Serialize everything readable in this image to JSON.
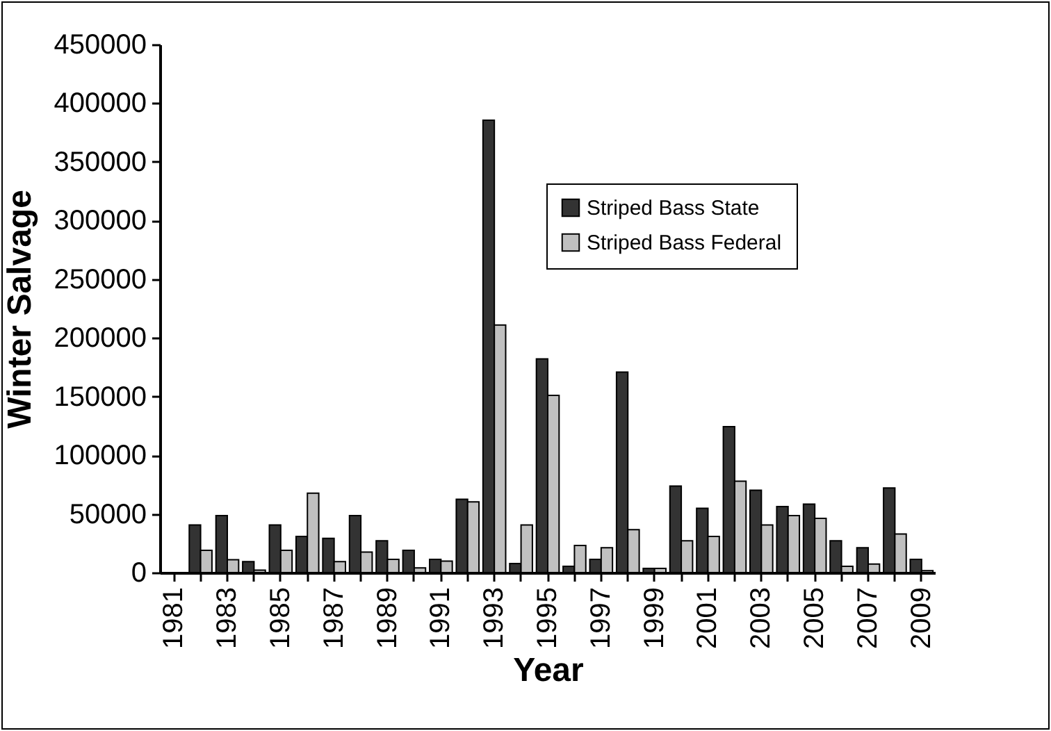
{
  "chart_data": {
    "type": "bar",
    "xlabel": "Year",
    "ylabel": "Winter Salvage",
    "categories": [
      "1981",
      null,
      "1983",
      null,
      "1985",
      null,
      "1987",
      null,
      "1989",
      null,
      "1991",
      null,
      "1993",
      null,
      "1995",
      null,
      "1997",
      null,
      "1999",
      null,
      "2001",
      null,
      "2003",
      null,
      "2005",
      null,
      "2007",
      null,
      "2009"
    ],
    "series": [
      {
        "name": "Striped Bass State",
        "color": "#333333",
        "values": [
          null,
          40500,
          48600,
          9300,
          40500,
          30800,
          29200,
          48600,
          27100,
          19000,
          11300,
          62400,
          385500,
          7700,
          182000,
          5300,
          11300,
          170800,
          3600,
          73700,
          54700,
          124300,
          70100,
          56300,
          58300,
          27100,
          21100,
          72100,
          11300
        ]
      },
      {
        "name": "Striped Bass Federal",
        "color": "#c0c0c0",
        "values": [
          null,
          19000,
          10900,
          2000,
          19000,
          67600,
          9300,
          17400,
          11300,
          4000,
          9700,
          60300,
          211000,
          40500,
          151000,
          23100,
          21100,
          36500,
          3600,
          27100,
          30800,
          77800,
          40500,
          48600,
          46200,
          5300,
          7300,
          32800,
          1600
        ]
      }
    ],
    "ylim": [
      0,
      450000
    ],
    "yticks": [
      0,
      50000,
      100000,
      150000,
      200000,
      250000,
      300000,
      350000,
      400000,
      450000
    ],
    "legend": "top right"
  }
}
